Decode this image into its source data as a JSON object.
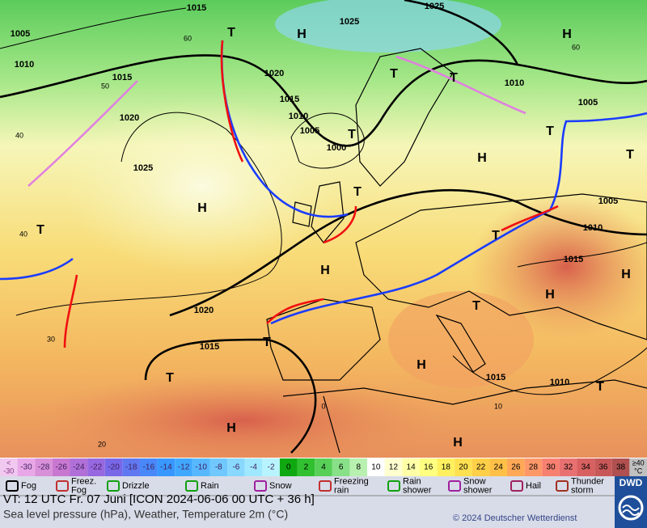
{
  "map": {
    "isobar_labels": [
      "1015",
      "1025",
      "1005",
      "1025",
      "1010",
      "1015",
      "1020",
      "1010",
      "1015",
      "1020",
      "1005",
      "1010",
      "1005",
      "1000",
      "1025",
      "1005",
      "1010",
      "1015",
      "1020",
      "1015",
      "1015",
      "1010"
    ],
    "centers": [
      "H",
      "H",
      "T",
      "T",
      "T",
      "T",
      "T",
      "H",
      "T",
      "H",
      "T",
      "T",
      "T",
      "H",
      "H",
      "H",
      "T",
      "H",
      "T",
      "T",
      "T",
      "H",
      "H"
    ],
    "latitudes": [
      "60",
      "60",
      "50",
      "40",
      "40",
      "30",
      "20",
      "0",
      "10"
    ]
  },
  "scale": {
    "low": [
      "<",
      "-30"
    ],
    "high": [
      "≥40",
      "°C"
    ],
    "cells": [
      "-30",
      "-28",
      "-26",
      "-24",
      "-22",
      "-20",
      "-18",
      "-16",
      "-14",
      "-12",
      "-10",
      "-8",
      "-6",
      "-4",
      "-2",
      "0",
      "2",
      "4",
      "6",
      "8",
      "10",
      "12",
      "14",
      "16",
      "18",
      "20",
      "22",
      "24",
      "26",
      "28",
      "30",
      "32",
      "34",
      "36",
      "38"
    ],
    "colors": [
      "#e8a8e8",
      "#d890d8",
      "#c878d0",
      "#b070d8",
      "#9868e0",
      "#7868e8",
      "#6078f0",
      "#4888f8",
      "#3898ff",
      "#40a8ff",
      "#58b8ff",
      "#70c8ff",
      "#88d8ff",
      "#a0e8ff",
      "#b8f4ff",
      "#10a810",
      "#30c030",
      "#58d058",
      "#88e088",
      "#b8f0b0",
      "#ffffff",
      "#ffffd0",
      "#ffffa8",
      "#ffff80",
      "#fff060",
      "#ffe050",
      "#ffd048",
      "#ffc048",
      "#ffa858",
      "#ff9868",
      "#f88070",
      "#e87070",
      "#d86060",
      "#c85858",
      "#b05050"
    ],
    "low_color": "#f0c8f0",
    "high_color": "#c0c0c0"
  },
  "legend": [
    "Fog",
    "Freez.\nFog",
    "Drizzle",
    "Rain",
    "Snow",
    "Freezing\nrain",
    "Rain\nshower",
    "Snow\nshower",
    "Hail",
    "Thunder\nstorm"
  ],
  "footer": {
    "valid_time": "VT: 12 UTC Fr.   07 Juni [ICON 2024-06-06  00 UTC + 36 h]",
    "description": "Sea level pressure (hPa), Weather, Temperature 2m (°C)",
    "copyright": "© 2024 Deutscher Wetterdienst",
    "logo": "DWD"
  }
}
